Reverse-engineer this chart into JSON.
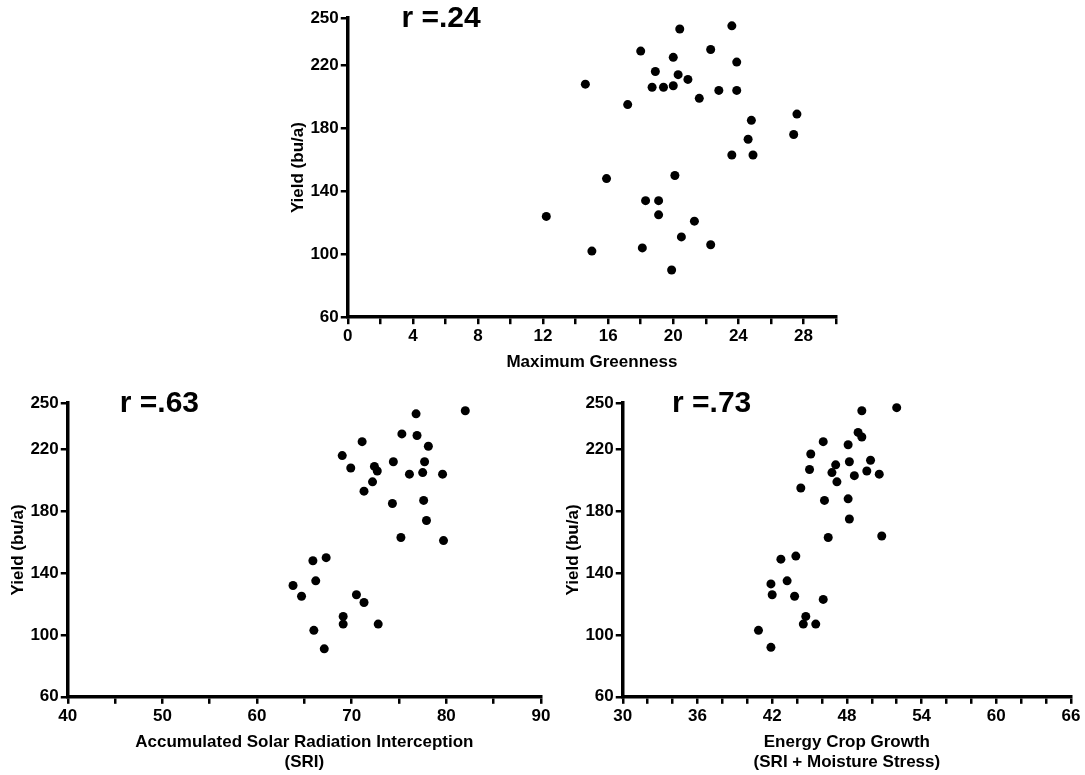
{
  "chart_data": [
    {
      "type": "scatter",
      "xlabel": "Maximum Greenness",
      "ylabel": "Yield (bu/a)",
      "annotations": [
        "r =.24"
      ],
      "color": "#000000",
      "marker": "circle",
      "x": [
        14.6,
        20.4,
        23.6,
        18.0,
        22.3,
        20.0,
        23.9,
        18.9,
        20.3,
        20.9,
        18.7,
        19.4,
        20.0,
        22.8,
        23.9,
        17.2,
        21.6,
        24.8,
        27.6,
        24.6,
        27.4,
        23.6,
        24.9,
        15.9,
        20.1,
        12.2,
        18.3,
        19.1,
        19.1,
        21.3,
        15.0,
        18.1,
        20.5,
        22.3,
        19.9
      ],
      "values": [
        208,
        243,
        245,
        229,
        230,
        225,
        222,
        216,
        214,
        211,
        206,
        206,
        207,
        204,
        204,
        195,
        199,
        185,
        189,
        173,
        176,
        163,
        163,
        148,
        150,
        124,
        134,
        134,
        125,
        121,
        102,
        104,
        111,
        106,
        90
      ],
      "xlim": [
        0,
        30
      ],
      "ylim": [
        60,
        250
      ],
      "xticks": [
        0,
        {
          "value": 2,
          "label": null
        },
        4,
        {
          "value": 6,
          "label": null
        },
        8,
        {
          "value": 10,
          "label": null
        },
        12,
        {
          "value": 14,
          "label": null
        },
        16,
        {
          "value": 18,
          "label": null
        },
        20,
        {
          "value": 22,
          "label": null
        },
        24,
        {
          "value": 26,
          "label": null
        },
        28,
        {
          "value": 30,
          "label": null
        }
      ],
      "yticks": [
        60,
        100,
        140,
        180,
        220,
        250
      ]
    },
    {
      "type": "scatter",
      "xlabel": "Accumulated Solar Radiation Interception\n(SRI)",
      "ylabel": "Yield (bu/a)",
      "annotations": [
        "r =.63"
      ],
      "color": "#000000",
      "marker": "circle",
      "x": [
        82.0,
        76.8,
        75.3,
        76.9,
        71.1,
        78.1,
        69.0,
        74.4,
        77.7,
        69.9,
        72.4,
        72.7,
        77.5,
        76.1,
        79.6,
        72.2,
        71.3,
        74.3,
        77.6,
        77.9,
        75.2,
        79.7,
        67.3,
        65.9,
        66.2,
        63.8,
        64.7,
        70.5,
        71.3,
        69.1,
        69.1,
        72.8,
        66.0,
        67.1
      ],
      "values": [
        245,
        243,
        230,
        229,
        225,
        222,
        216,
        212,
        212,
        208,
        209,
        206,
        205,
        204,
        204,
        199,
        193,
        185,
        187,
        174,
        163,
        161,
        150,
        148,
        135,
        132,
        125,
        126,
        121,
        112,
        107,
        107,
        103,
        91
      ],
      "xlim": [
        40,
        90
      ],
      "ylim": [
        60,
        250
      ],
      "xticks": [
        40,
        {
          "value": 45,
          "label": null
        },
        50,
        {
          "value": 55,
          "label": null
        },
        60,
        {
          "value": 65,
          "label": null
        },
        70,
        {
          "value": 75,
          "label": null
        },
        80,
        {
          "value": 85,
          "label": null
        },
        90
      ],
      "yticks": [
        60,
        100,
        140,
        180,
        220,
        250
      ]
    },
    {
      "type": "scatter",
      "xlabel": "Energy Crop Growth\n(SRI + Moisture Stress)",
      "ylabel": "Yield (bu/a)",
      "annotations": [
        "r =.73"
      ],
      "color": "#000000",
      "marker": "circle",
      "x": [
        52.0,
        49.2,
        48.9,
        49.2,
        46.1,
        48.1,
        45.1,
        49.9,
        48.2,
        47.1,
        45.0,
        46.8,
        49.6,
        50.6,
        48.6,
        47.2,
        44.3,
        46.2,
        48.1,
        48.2,
        46.5,
        50.8,
        42.7,
        43.9,
        41.9,
        43.2,
        42.0,
        43.8,
        46.1,
        44.7,
        44.5,
        45.5,
        40.9,
        41.9
      ],
      "values": [
        247,
        245,
        231,
        228,
        225,
        223,
        217,
        213,
        212,
        210,
        207,
        205,
        206,
        204,
        203,
        199,
        195,
        187,
        188,
        175,
        163,
        164,
        149,
        151,
        133,
        135,
        126,
        125,
        123,
        112,
        107,
        107,
        103,
        92
      ],
      "xlim": [
        30,
        66
      ],
      "ylim": [
        60,
        250
      ],
      "xticks": [
        30,
        {
          "value": 32,
          "label": null
        },
        {
          "value": 34,
          "label": null
        },
        36,
        {
          "value": 38,
          "label": null
        },
        {
          "value": 40,
          "label": null
        },
        42,
        {
          "value": 44,
          "label": null
        },
        {
          "value": 46,
          "label": null
        },
        48,
        {
          "value": 50,
          "label": null
        },
        {
          "value": 52,
          "label": null
        },
        54,
        {
          "value": 56,
          "label": null
        },
        {
          "value": 58,
          "label": null
        },
        60,
        {
          "value": 62,
          "label": null
        },
        {
          "value": 64,
          "label": null
        },
        66
      ],
      "yticks": [
        60,
        100,
        140,
        180,
        220,
        250
      ]
    }
  ]
}
